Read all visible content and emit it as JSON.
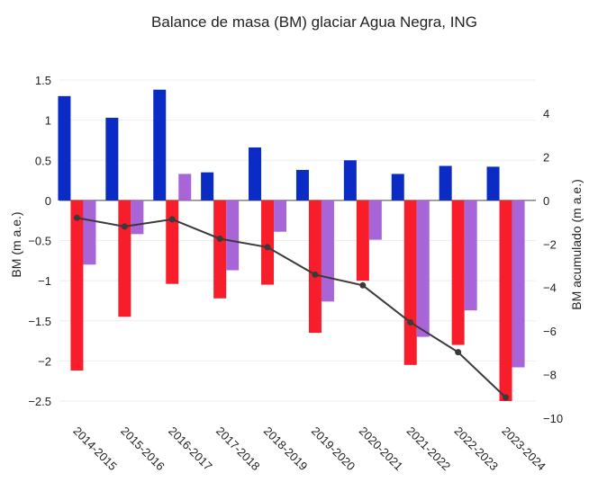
{
  "chart_data": {
    "type": "bar",
    "title": "Balance de masa (BM) glaciar Agua Negra, ING",
    "ylabel": "BM (m a.e.)",
    "y2label": "BM acumulado (m a.e.)",
    "categories": [
      "2014-2015",
      "2015-2016",
      "2016-2017",
      "2017-2018",
      "2018-2019",
      "2019-2020",
      "2020-2021",
      "2021-2022",
      "2022-2023",
      "2023-2024"
    ],
    "ylim": [
      -2.5,
      1.5
    ],
    "y2lim": [
      -10,
      4
    ],
    "yticks": [
      1.5,
      1,
      0.5,
      0,
      -0.5,
      -1,
      -1.5,
      -2,
      -2.5
    ],
    "ytick_labels": [
      "1.5",
      "1",
      "0.5",
      "0",
      "−0.5",
      "−1",
      "−1.5",
      "−2",
      "−2.5"
    ],
    "y2ticks": [
      4,
      2,
      0,
      -2,
      -4,
      -6,
      -8,
      -10
    ],
    "y2tick_labels": [
      "4",
      "2",
      "0",
      "−2",
      "−4",
      "−6",
      "−8",
      "−10"
    ],
    "series": [
      {
        "key": "winter",
        "color": "#0a2bc4",
        "values": [
          1.3,
          1.03,
          1.38,
          0.35,
          0.66,
          0.38,
          0.5,
          0.33,
          0.43,
          0.42
        ]
      },
      {
        "key": "summer",
        "color": "#f71d2a",
        "values": [
          -2.12,
          -1.45,
          -1.04,
          -1.22,
          -1.05,
          -1.65,
          -1.0,
          -2.05,
          -1.8,
          -2.5
        ]
      },
      {
        "key": "annual",
        "color": "#a865d8",
        "values": [
          -0.8,
          -0.42,
          0.33,
          -0.87,
          -0.39,
          -1.26,
          -0.49,
          -1.7,
          -1.37,
          -2.08
        ]
      },
      {
        "key": "cumulative",
        "type": "line",
        "axis": "y2",
        "color": "#3a3a3a",
        "values": [
          -0.8,
          -1.2,
          -0.87,
          -1.76,
          -2.15,
          -3.41,
          -3.9,
          -5.6,
          -6.97,
          -9.05
        ]
      }
    ],
    "grid": true,
    "legend": "none"
  }
}
